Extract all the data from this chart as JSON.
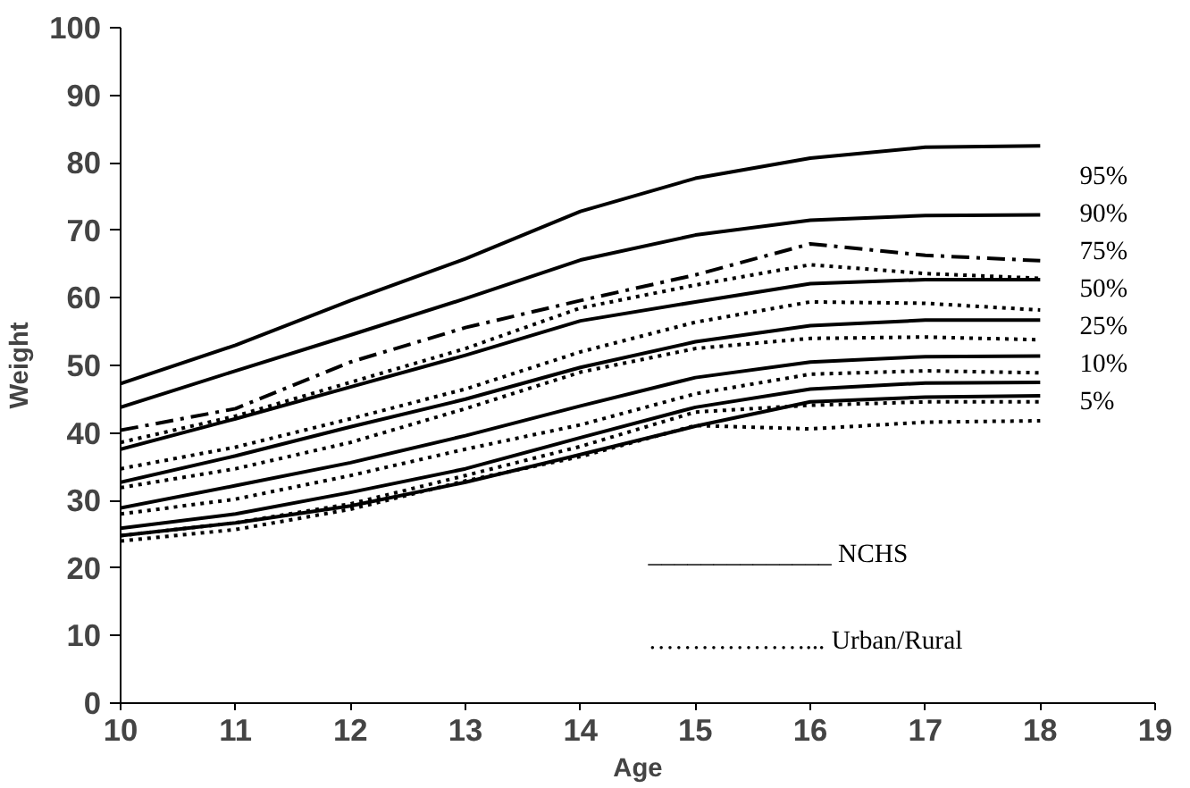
{
  "chart_data": {
    "type": "line",
    "xlabel": "Age",
    "ylabel": "Weight",
    "x": [
      10,
      11,
      12,
      13,
      14,
      15,
      16,
      17,
      18
    ],
    "xlim": [
      10,
      19
    ],
    "xticks": [
      10,
      11,
      12,
      13,
      14,
      15,
      16,
      17,
      18,
      19
    ],
    "ylim": [
      0,
      100
    ],
    "yticks": [
      0,
      10,
      20,
      30,
      40,
      50,
      60,
      70,
      80,
      90,
      100
    ],
    "grid": false,
    "marker": "none",
    "series": [
      {
        "color": "#000000",
        "line_style": "solid",
        "values": [
          47.3,
          53,
          59.6,
          65.8,
          72.8,
          77.7,
          80.7,
          82.3,
          82.5
        ]
      },
      {
        "color": "#000000",
        "line_style": "solid",
        "values": [
          43.8,
          49.2,
          54.5,
          59.9,
          65.6,
          69.3,
          71.5,
          72.2,
          72.3
        ]
      },
      {
        "color": "#000000",
        "line_style": "solid",
        "values": [
          37.6,
          42.1,
          46.8,
          51.5,
          56.6,
          59.4,
          62.1,
          62.7,
          62.7
        ]
      },
      {
        "color": "#000000",
        "line_style": "solid",
        "values": [
          32.7,
          36.6,
          40.9,
          45,
          49.7,
          53.5,
          55.9,
          56.7,
          56.7
        ]
      },
      {
        "color": "#000000",
        "line_style": "solid",
        "values": [
          28.9,
          32.2,
          35.6,
          39.6,
          44,
          48.2,
          50.5,
          51.3,
          51.4
        ]
      },
      {
        "color": "#000000",
        "line_style": "solid",
        "values": [
          25.9,
          28,
          31.2,
          34.7,
          39.3,
          43.8,
          46.5,
          47.4,
          47.5
        ]
      },
      {
        "color": "#000000",
        "line_style": "solid",
        "values": [
          24.8,
          26.7,
          29.2,
          32.7,
          36.8,
          41,
          44.6,
          45.3,
          45.5
        ]
      },
      {
        "color": "#000000",
        "line_style": "dashdot",
        "values": [
          40.4,
          43.6,
          50.5,
          55.6,
          59.6,
          63.4,
          68,
          66.3,
          65.5
        ]
      },
      {
        "color": "#000000",
        "line_style": "dotted",
        "values": [
          38.6,
          42.5,
          47.5,
          52.5,
          58.5,
          61.9,
          64.9,
          63.6,
          62.9
        ]
      },
      {
        "color": "#000000",
        "line_style": "dotted",
        "values": [
          34.7,
          37.9,
          42.1,
          46.5,
          52,
          56.4,
          59.4,
          59.2,
          58.2
        ]
      },
      {
        "color": "#000000",
        "line_style": "dotted",
        "values": [
          31.9,
          34.7,
          38.6,
          43.6,
          49,
          52.5,
          54,
          54.2,
          53.8
        ]
      },
      {
        "color": "#000000",
        "line_style": "dotted",
        "values": [
          28,
          30.2,
          33.7,
          37.6,
          41.2,
          45.8,
          48.7,
          49.2,
          48.9
        ]
      },
      {
        "color": "#000000",
        "line_style": "dotted",
        "values": [
          24.8,
          26.7,
          29.5,
          33.7,
          38,
          43.1,
          44.1,
          44.6,
          44.6
        ]
      },
      {
        "color": "#000000",
        "line_style": "dotted",
        "values": [
          24,
          25.7,
          28.7,
          32.9,
          36.5,
          41.1,
          40.6,
          41.6,
          41.8
        ]
      }
    ],
    "annotations": [
      "95%",
      "90%",
      "75%",
      "50%",
      "25%",
      "10%",
      "5%",
      "______________ NCHS",
      "………………... Urban/Rural"
    ]
  }
}
